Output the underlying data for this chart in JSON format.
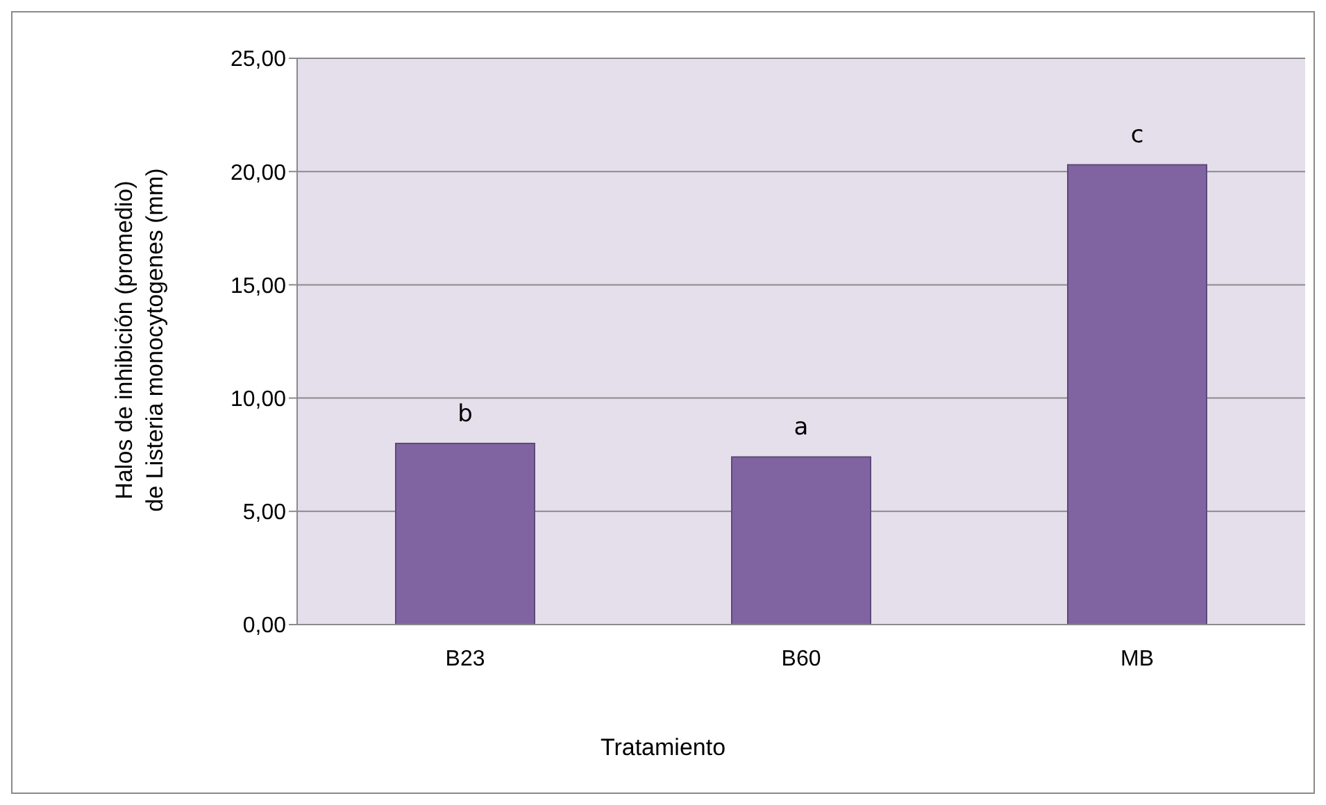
{
  "chart_data": {
    "type": "bar",
    "xlabel": "Tratamiento",
    "ylabel": "Halos de inhibición (promedio)\nde Listeria monocytogenes (mm)",
    "categories": [
      "B23",
      "B60",
      "MB"
    ],
    "values": [
      8.0,
      7.4,
      20.3
    ],
    "color": "#8064a2",
    "ylim": [
      0,
      25
    ],
    "yticks": [
      {
        "value": 0,
        "label": "0,00"
      },
      {
        "value": 5,
        "label": "5,00"
      },
      {
        "value": 10,
        "label": "10,00"
      },
      {
        "value": 15,
        "label": "15,00"
      },
      {
        "value": 20,
        "label": "20,00"
      },
      {
        "value": 25,
        "label": "25,00"
      }
    ],
    "grid": "y",
    "annotations": [
      {
        "text": "b",
        "x": "B23",
        "y": 8.0
      },
      {
        "text": "a",
        "x": "B60",
        "y": 7.4
      },
      {
        "text": "c",
        "x": "MB",
        "y": 20.3
      }
    ]
  }
}
